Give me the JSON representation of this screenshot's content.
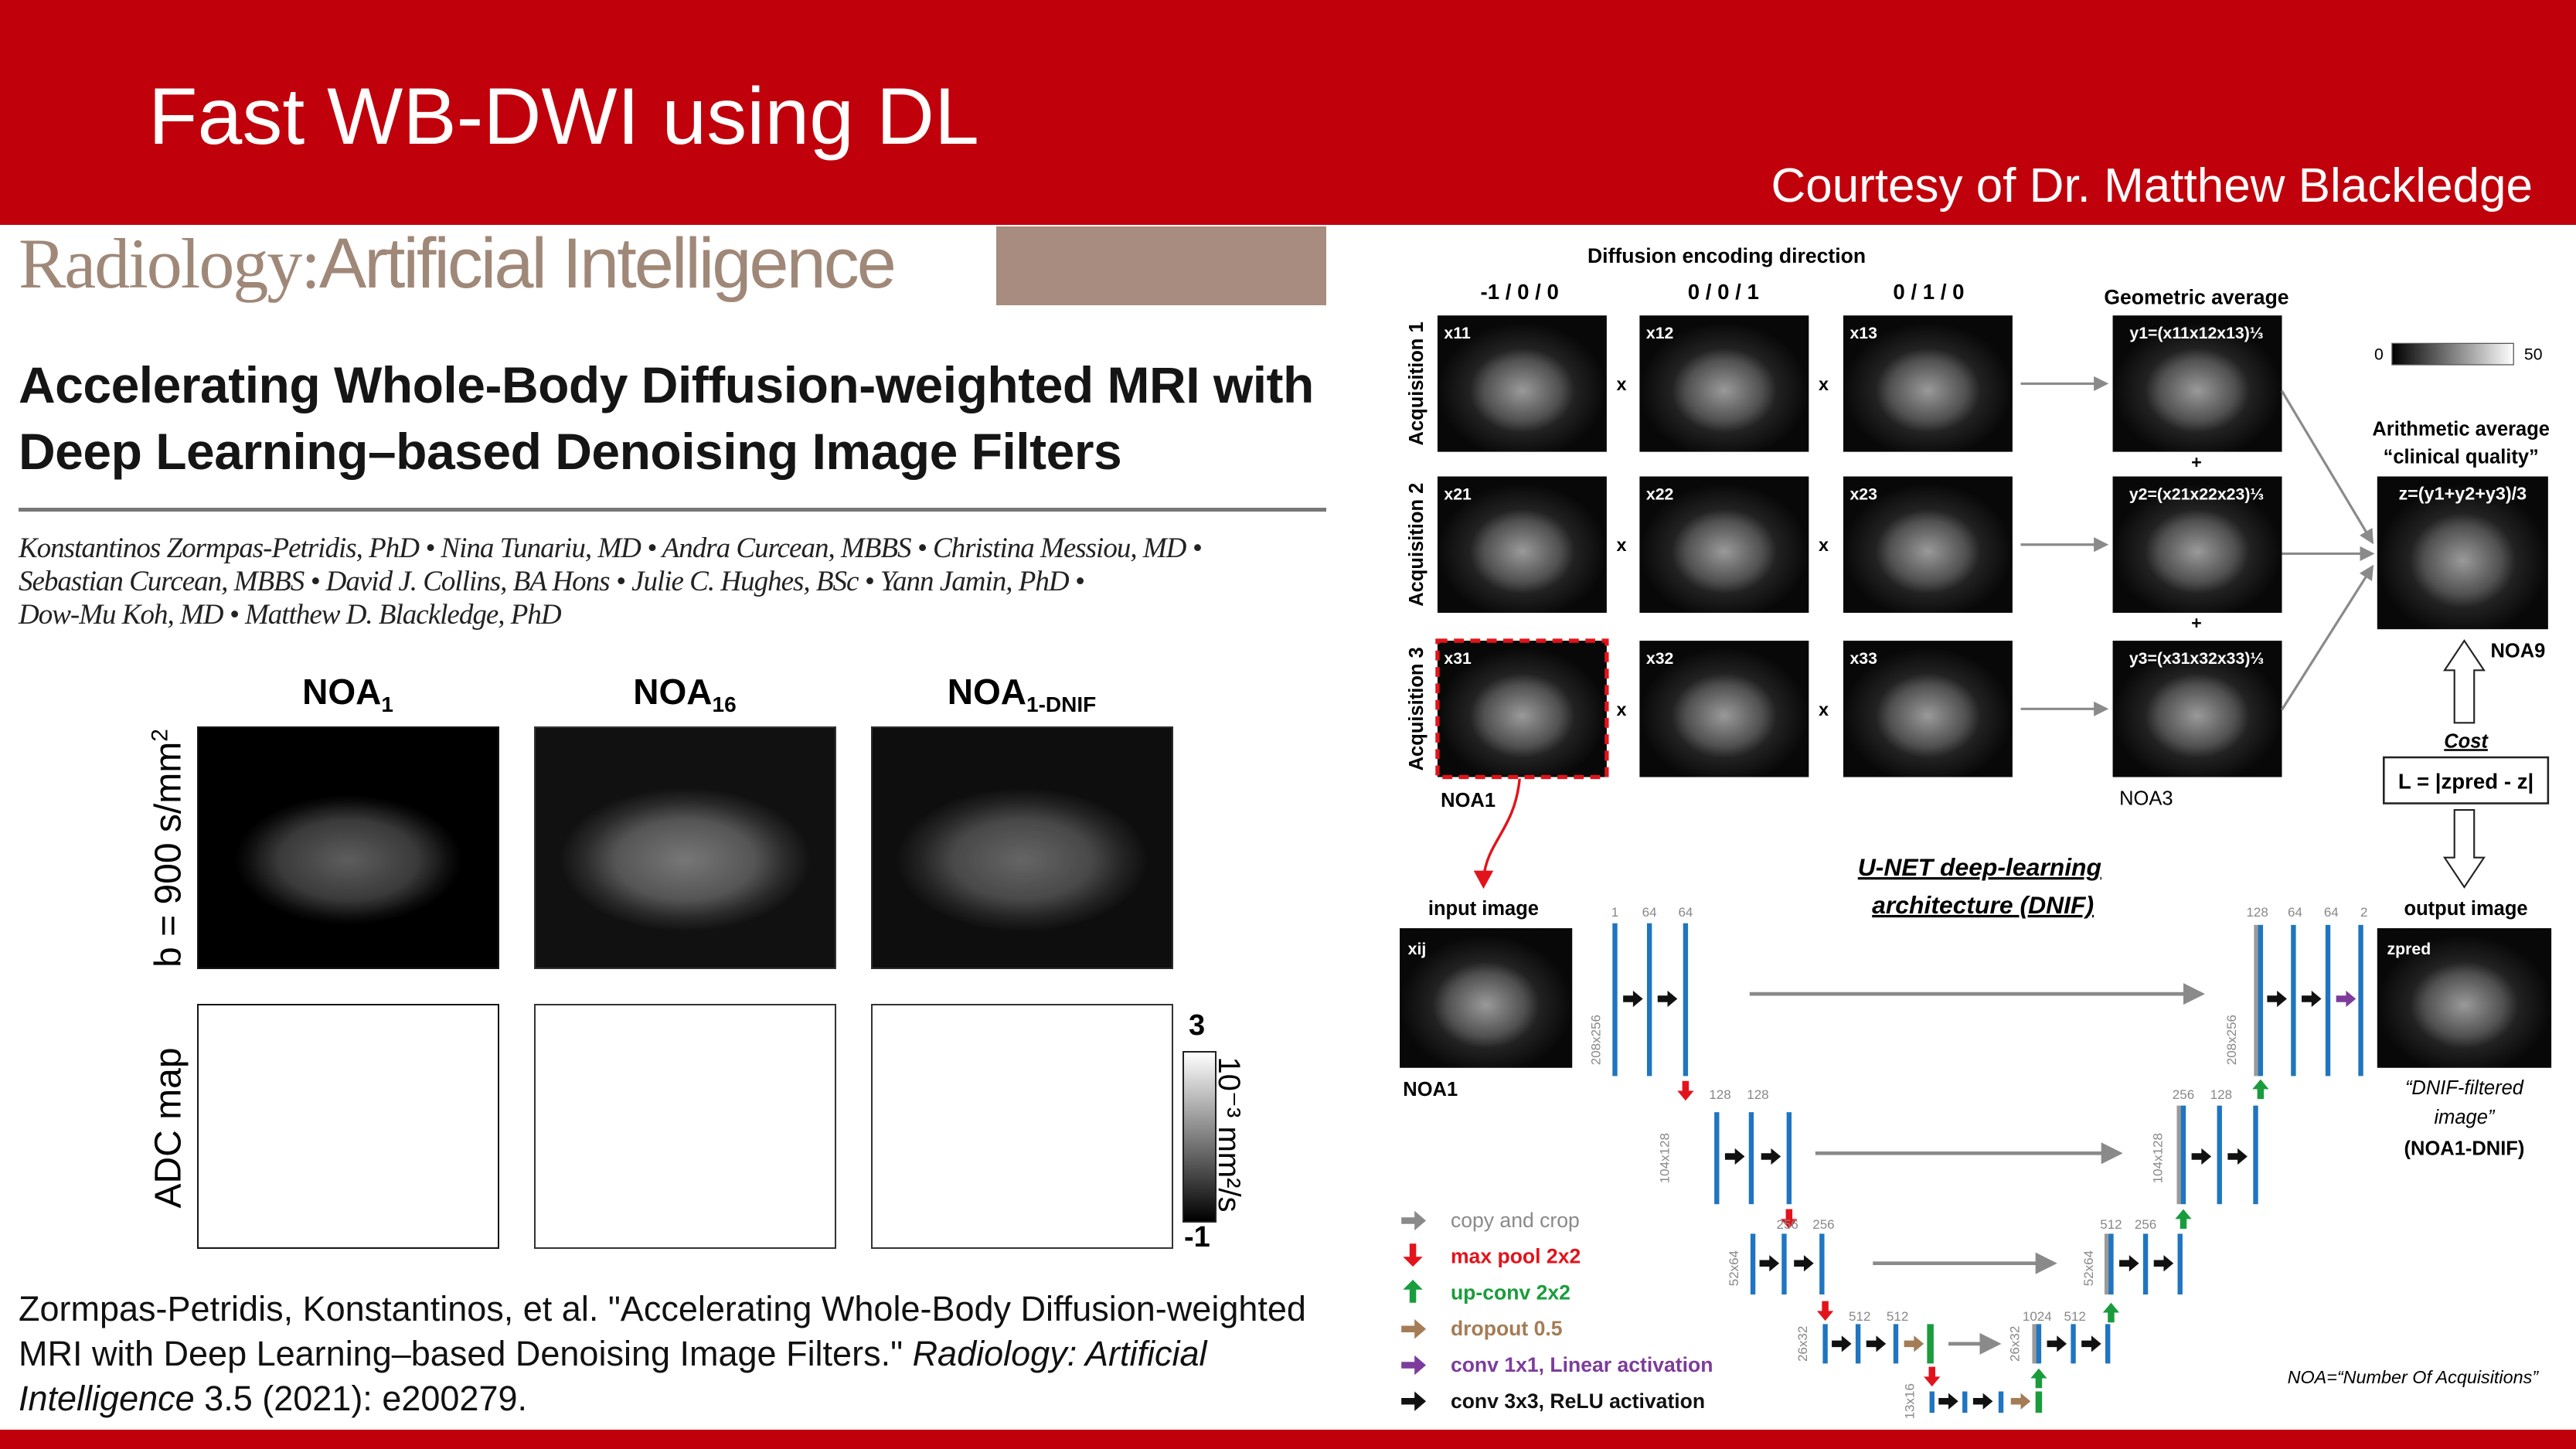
{
  "slide": {
    "title": "Fast WB-DWI using DL",
    "courtesy": "Courtesy of Dr. Matthew Blackledge",
    "colors": {
      "header_red": "#c0000b",
      "journal_brown": "#a88c7f"
    }
  },
  "paper": {
    "journal_name_1": "Radiology:",
    "journal_name_2": "Artificial Intelligence",
    "title_line1": "Accelerating Whole-Body Diffusion-weighted MRI with",
    "title_line2": "Deep Learning–based Denoising Image Filters",
    "authors_line1": "Konstantinos Zormpas-Petridis, PhD  •  Nina Tunariu, MD  •  Andra Curcean, MBBS  •  Christina Messiou, MD  •",
    "authors_line2": "Sebastian Curcean, MBBS  •  David J. Collins, BA Hons  •  Julie C. Hughes, BSc  •  Yann Jamin, PhD  •",
    "authors_line3": "Dow-Mu Koh, MD  •  Matthew D. Blackledge, PhD"
  },
  "left_figure": {
    "columns": [
      {
        "main": "NOA",
        "sub": "1"
      },
      {
        "main": "NOA",
        "sub": "16"
      },
      {
        "main": "NOA",
        "sub": "1-DNIF"
      }
    ],
    "row_b900_main": "b = 900 s/mm",
    "row_b900_sup": "2",
    "row_adc": "ADC map",
    "colorbar_max": "3",
    "colorbar_min": "-1",
    "colorbar_unit": "10⁻³ mm²/s"
  },
  "citation": {
    "text1": "Zormpas-Petridis, Konstantinos, et al. \"Accelerating Whole-Body Diffusion-weighted MRI with Deep Learning–based Denoising Image Filters.\" ",
    "journal": "Radiology: Artificial Intelligence",
    "text2": " 3.5 (2021): e200279."
  },
  "right_figure": {
    "encoding_title": "Diffusion encoding direction",
    "directions": [
      "-1 / 0 / 0",
      "0 / 0 / 1",
      "0 / 1 / 0"
    ],
    "geometric_title": "Geometric average",
    "acquisitions": [
      "Acquisition 1",
      "Acquisition 2",
      "Acquisition 3"
    ],
    "image_labels": [
      [
        "x11",
        "x12",
        "x13"
      ],
      [
        "x21",
        "x22",
        "x23"
      ],
      [
        "x31",
        "x32",
        "x33"
      ]
    ],
    "geometric_labels": [
      "y1=(x11x12x13)⅓",
      "y2=(x21x22x23)⅓",
      "y3=(x31x32x33)⅓"
    ],
    "times": "x",
    "plus": "+",
    "colorbar_min": "0",
    "colorbar_max": "50",
    "arith_title1": "Arithmetic average",
    "arith_title2": "“clinical quality”",
    "arith_label": "z=(y1+y2+y3)/3",
    "noa9": "NOA9",
    "noa1": "NOA1",
    "noa3": "NOA3",
    "cost_title": "Cost",
    "cost_formula": "L = |zpred - z|",
    "unet_title1": "U-NET deep-learning",
    "unet_title2": "architecture (DNIF)",
    "input_title": "input image",
    "input_label": "xij",
    "input_caption": "NOA1",
    "output_title": "output image",
    "output_label": "zpred",
    "output_caption1": "“DNIF-filtered",
    "output_caption2": "image”",
    "output_caption3": "(NOA1-DNIF)",
    "channel_labels": {
      "enc1": [
        "1",
        "64",
        "64"
      ],
      "enc2": [
        "128",
        "128"
      ],
      "enc3": [
        "256",
        "256"
      ],
      "enc4": [
        "512",
        "512"
      ],
      "dec4": [
        "1024",
        "512"
      ],
      "dec3": [
        "512",
        "256"
      ],
      "dec2": [
        "256",
        "128"
      ],
      "dec1": [
        "128",
        "64",
        "64",
        "2"
      ]
    },
    "size_labels": {
      "l1": "208x256",
      "l2": "104x128",
      "l3": "52x64",
      "l4": "26x32",
      "l5": "13x16"
    },
    "legend": [
      {
        "label": "copy and crop",
        "color": "#8a8a8a"
      },
      {
        "label": "max pool 2x2",
        "color": "#e3131b"
      },
      {
        "label": "up-conv 2x2",
        "color": "#1a9c3c"
      },
      {
        "label": "dropout 0.5",
        "color": "#a47c55"
      },
      {
        "label": "conv 1x1, Linear activation",
        "color": "#7d3c9c"
      },
      {
        "label": "conv 3x3, ReLU activation",
        "color": "#111111"
      }
    ],
    "noa_definition": "NOA=“Number Of Acquisitions”",
    "bar_color": "#1f75c0"
  }
}
